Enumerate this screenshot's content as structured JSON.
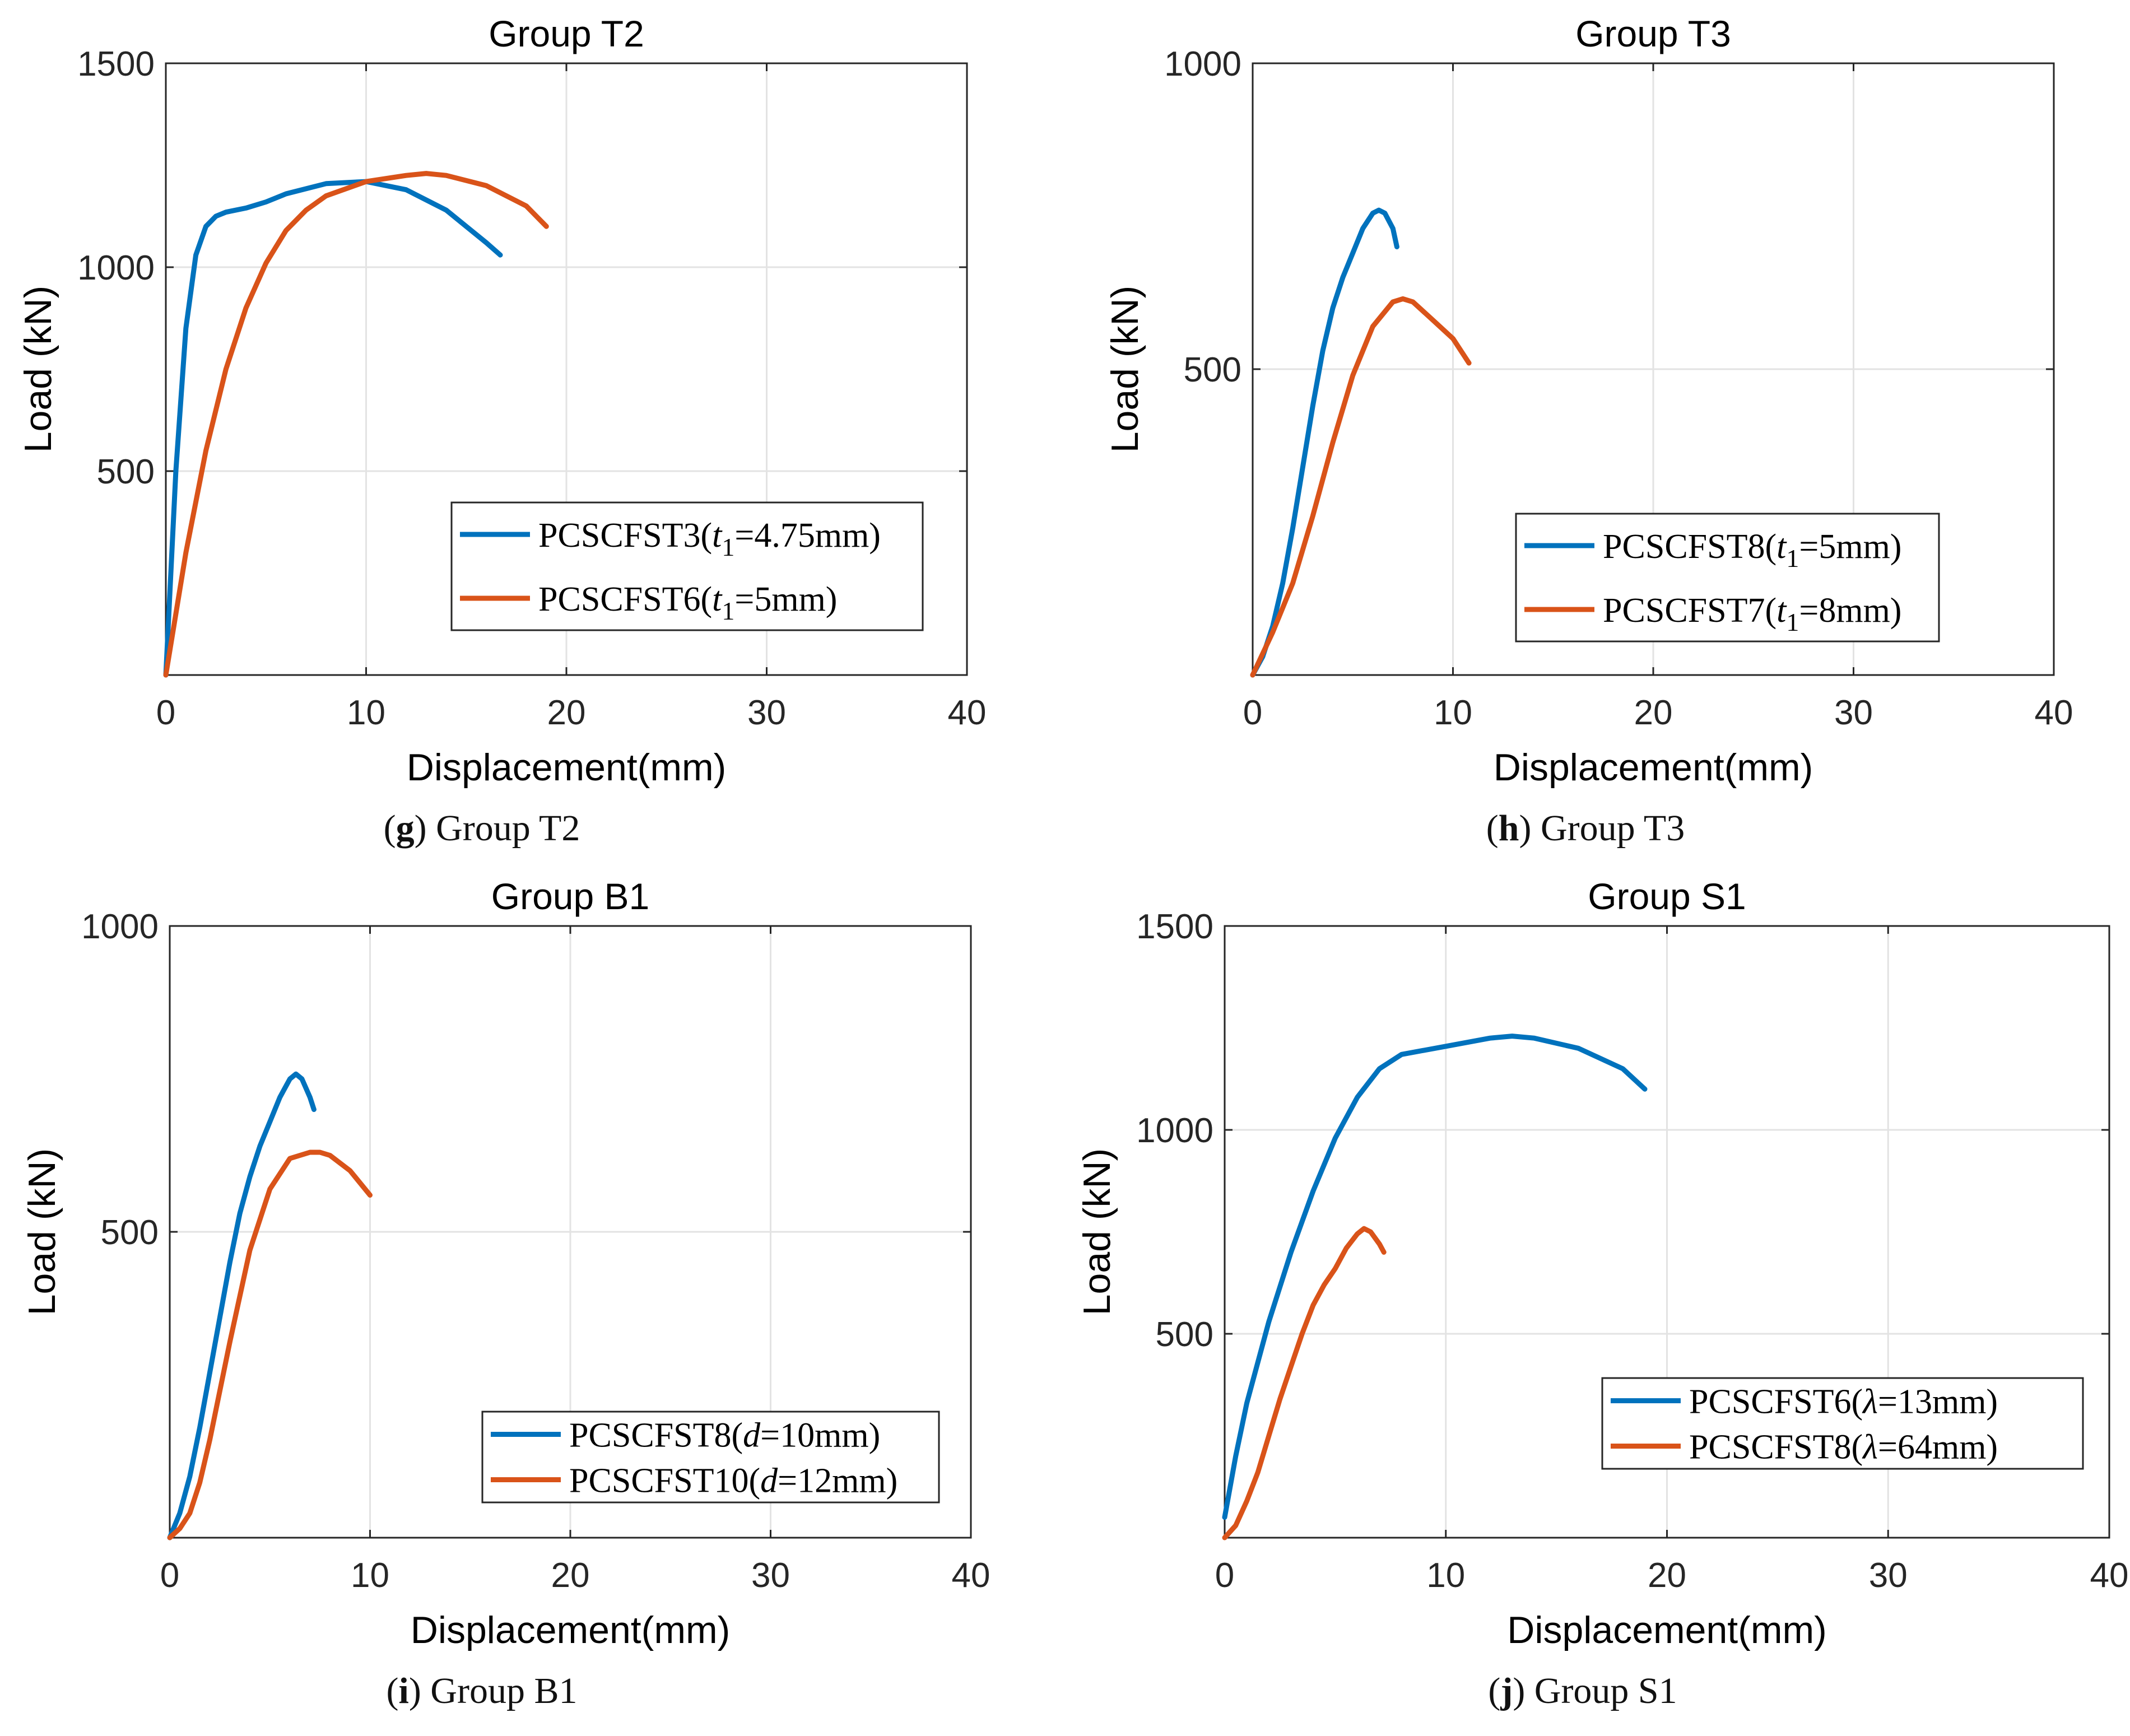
{
  "colors": {
    "blue": "#0072BD",
    "orange": "#D95319",
    "grid": "#e3e3e3",
    "axis": "#262626"
  },
  "panels": [
    {
      "id": "g",
      "caption": {
        "letter": "g",
        "text": "Group T2"
      },
      "legend_pos": "lower-right",
      "chart_data": {
        "type": "line",
        "title": "Group T2",
        "xlabel": "Displacement(mm)",
        "ylabel": "Load (kN)",
        "xlim": [
          0,
          40
        ],
        "ylim": [
          0,
          1500
        ],
        "xticks": [
          0,
          10,
          20,
          30,
          40
        ],
        "yticks": [
          500,
          1000,
          1500
        ],
        "grid": true,
        "series": [
          {
            "name": "PCSCFST3(",
            "var": "t",
            "sub": "1",
            "val": "=4.75mm)",
            "color": "#0072BD",
            "x": [
              0,
              0.5,
              1,
              1.5,
              2,
              2.5,
              3,
              4,
              5,
              6,
              8,
              10,
              12,
              14,
              15,
              16,
              16.7
            ],
            "y": [
              0,
              500,
              850,
              1030,
              1100,
              1125,
              1135,
              1145,
              1160,
              1180,
              1205,
              1210,
              1190,
              1140,
              1100,
              1060,
              1030
            ]
          },
          {
            "name": "PCSCFST6(",
            "var": "t",
            "sub": "1",
            "val": "=5mm)",
            "color": "#D95319",
            "x": [
              0,
              0.5,
              1,
              2,
              3,
              4,
              5,
              6,
              7,
              8,
              10,
              12,
              13,
              14,
              16,
              18,
              19
            ],
            "y": [
              0,
              150,
              300,
              550,
              750,
              900,
              1010,
              1090,
              1140,
              1175,
              1210,
              1225,
              1230,
              1225,
              1200,
              1150,
              1100
            ]
          }
        ]
      }
    },
    {
      "id": "h",
      "caption": {
        "letter": "h",
        "text": "Group T3"
      },
      "legend_pos": "lower-right",
      "chart_data": {
        "type": "line",
        "title": "Group T3",
        "xlabel": "Displacement(mm)",
        "ylabel": "Load (kN)",
        "xlim": [
          0,
          40
        ],
        "ylim": [
          0,
          1000
        ],
        "xticks": [
          0,
          10,
          20,
          30,
          40
        ],
        "yticks": [
          500,
          1000
        ],
        "grid": true,
        "series": [
          {
            "name": "PCSCFST8(",
            "var": "t",
            "sub": "1",
            "val": "=5mm)",
            "color": "#0072BD",
            "x": [
              0,
              0.5,
              1,
              1.5,
              2,
              2.5,
              3,
              3.5,
              4,
              4.5,
              5,
              5.5,
              6,
              6.3,
              6.6,
              7,
              7.2
            ],
            "y": [
              0,
              30,
              80,
              150,
              240,
              340,
              440,
              530,
              600,
              650,
              690,
              730,
              755,
              760,
              755,
              730,
              700
            ]
          },
          {
            "name": "PCSCFST7(",
            "var": "t",
            "sub": "1",
            "val": "=8mm)",
            "color": "#D95319",
            "x": [
              0,
              1,
              2,
              3,
              4,
              5,
              6,
              7,
              7.5,
              8,
              9,
              10,
              10.8
            ],
            "y": [
              0,
              70,
              150,
              260,
              380,
              490,
              570,
              610,
              615,
              610,
              580,
              550,
              510
            ]
          }
        ]
      }
    },
    {
      "id": "i",
      "caption": {
        "letter": "i",
        "text": "Group B1"
      },
      "legend_pos": "lower-right",
      "chart_data": {
        "type": "line",
        "title": "Group B1",
        "xlabel": "Displacement(mm)",
        "ylabel": "Load (kN)",
        "xlim": [
          0,
          40
        ],
        "ylim": [
          0,
          1000
        ],
        "xticks": [
          0,
          10,
          20,
          30,
          40
        ],
        "yticks": [
          500,
          1000
        ],
        "grid": true,
        "series": [
          {
            "name": "PCSCFST8(",
            "var": "d",
            "sub": "",
            "val": "=10mm)",
            "color": "#0072BD",
            "x": [
              0,
              0.5,
              1,
              1.5,
              2,
              2.5,
              3,
              3.5,
              4,
              4.5,
              5,
              5.5,
              6,
              6.3,
              6.6,
              7,
              7.2
            ],
            "y": [
              0,
              40,
              100,
              180,
              270,
              360,
              450,
              530,
              590,
              640,
              680,
              720,
              750,
              758,
              750,
              720,
              700
            ]
          },
          {
            "name": "PCSCFST10(",
            "var": "d",
            "sub": "",
            "val": "=12mm)",
            "color": "#D95319",
            "x": [
              0,
              0.5,
              1,
              1.5,
              2,
              2.5,
              3,
              4,
              5,
              6,
              7,
              7.5,
              8,
              9,
              10
            ],
            "y": [
              0,
              15,
              40,
              90,
              160,
              240,
              320,
              470,
              570,
              620,
              630,
              630,
              625,
              600,
              560
            ]
          }
        ]
      }
    },
    {
      "id": "j",
      "caption": {
        "letter": "j",
        "text": "Group S1"
      },
      "legend_pos": "lower-right",
      "chart_data": {
        "type": "line",
        "title": "Group S1",
        "xlabel": "Displacement(mm)",
        "ylabel": "Load (kN)",
        "xlim": [
          0,
          40
        ],
        "ylim": [
          0,
          1500
        ],
        "xticks": [
          0,
          10,
          20,
          30,
          40
        ],
        "yticks": [
          500,
          1000,
          1500
        ],
        "grid": true,
        "series": [
          {
            "name": "PCSCFST6(",
            "var": "λ",
            "sub": "",
            "val": "=13mm)",
            "color": "#0072BD",
            "x": [
              0,
              0.5,
              1,
              2,
              3,
              4,
              5,
              6,
              7,
              8,
              10,
              12,
              13,
              14,
              16,
              18,
              19
            ],
            "y": [
              50,
              200,
              330,
              530,
              700,
              850,
              980,
              1080,
              1150,
              1185,
              1205,
              1225,
              1230,
              1225,
              1200,
              1150,
              1100
            ]
          },
          {
            "name": "PCSCFST8(",
            "var": "λ",
            "sub": "",
            "val": "=64mm)",
            "color": "#D95319",
            "x": [
              0,
              0.5,
              1,
              1.5,
              2,
              2.5,
              3,
              3.5,
              4,
              4.5,
              5,
              5.5,
              6,
              6.3,
              6.6,
              7,
              7.2
            ],
            "y": [
              0,
              30,
              90,
              160,
              250,
              340,
              420,
              500,
              570,
              620,
              660,
              710,
              745,
              758,
              750,
              720,
              700
            ]
          }
        ]
      }
    }
  ]
}
